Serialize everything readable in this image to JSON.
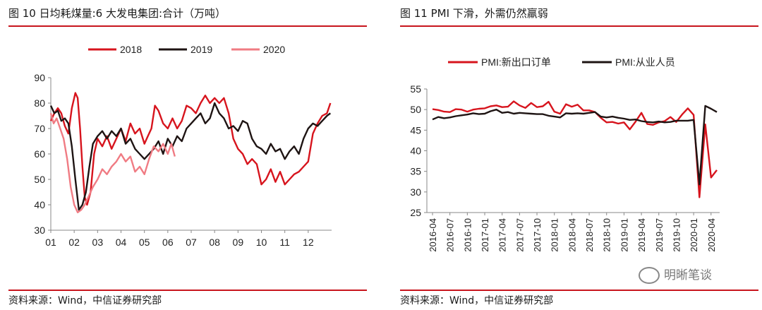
{
  "left": {
    "title": "图 10 日均耗煤量:6 大发电集团:合计（万吨）",
    "source": "资料来源：Wind，中信证券研究部"
  },
  "right": {
    "title": "图 11 PMI 下滑，外需仍然羸弱",
    "source": "资料来源：Wind，中信证券研究部",
    "watermark": "明晰笔谈"
  },
  "chart_data": [
    {
      "type": "line",
      "title": "日均耗煤量:6 大发电集团:合计（万吨）",
      "ylim": [
        30,
        90
      ],
      "yticks": [
        30,
        40,
        50,
        60,
        70,
        80,
        90
      ],
      "xlim": [
        1,
        13
      ],
      "xticks": [
        "01",
        "02",
        "03",
        "04",
        "05",
        "06",
        "07",
        "08",
        "09",
        "10",
        "11",
        "12"
      ],
      "legend_position": "top",
      "series": [
        {
          "name": "2018",
          "color": "#d7141d",
          "x": [
            1.0,
            1.15,
            1.3,
            1.45,
            1.6,
            1.75,
            1.9,
            2.05,
            2.15,
            2.25,
            2.35,
            2.45,
            2.55,
            2.7,
            2.85,
            3.0,
            3.2,
            3.4,
            3.6,
            3.8,
            4.0,
            4.2,
            4.4,
            4.6,
            4.8,
            5.0,
            5.15,
            5.3,
            5.45,
            5.6,
            5.8,
            6.0,
            6.2,
            6.4,
            6.6,
            6.8,
            7.0,
            7.2,
            7.4,
            7.6,
            7.8,
            8.0,
            8.2,
            8.4,
            8.6,
            8.8,
            9.0,
            9.2,
            9.4,
            9.6,
            9.8,
            10.0,
            10.2,
            10.4,
            10.6,
            10.8,
            11.0,
            11.2,
            11.4,
            11.6,
            11.8,
            12.0,
            12.2,
            12.4,
            12.6,
            12.8,
            12.95
          ],
          "values": [
            73,
            76,
            78,
            76,
            71,
            68,
            78,
            84,
            82,
            70,
            55,
            43,
            40,
            45,
            60,
            66,
            63,
            67,
            62,
            66,
            70,
            65,
            72,
            68,
            70,
            64,
            67,
            70,
            79,
            77,
            72,
            70,
            74,
            70,
            73,
            79,
            78,
            76,
            80,
            83,
            80,
            82,
            80,
            82,
            76,
            66,
            62,
            60,
            56,
            58,
            56,
            48,
            50,
            54,
            49,
            53,
            48,
            50,
            52,
            53,
            55,
            57,
            68,
            72,
            75,
            76,
            80
          ]
        },
        {
          "name": "2019",
          "color": "#1e1413",
          "x": [
            1.0,
            1.15,
            1.3,
            1.45,
            1.6,
            1.75,
            1.9,
            2.05,
            2.2,
            2.35,
            2.5,
            2.65,
            2.8,
            3.0,
            3.2,
            3.4,
            3.6,
            3.8,
            4.0,
            4.2,
            4.4,
            4.6,
            4.8,
            5.0,
            5.2,
            5.4,
            5.6,
            5.8,
            6.0,
            6.2,
            6.4,
            6.6,
            6.8,
            7.0,
            7.2,
            7.4,
            7.6,
            7.8,
            8.0,
            8.2,
            8.4,
            8.6,
            8.8,
            9.0,
            9.2,
            9.4,
            9.6,
            9.8,
            10.0,
            10.2,
            10.4,
            10.6,
            10.8,
            11.0,
            11.2,
            11.4,
            11.6,
            11.8,
            12.0,
            12.2,
            12.4,
            12.6,
            12.8,
            12.95
          ],
          "values": [
            79,
            76,
            77,
            73,
            74,
            72,
            63,
            50,
            38,
            40,
            45,
            55,
            64,
            67,
            69,
            66,
            69,
            67,
            70,
            64,
            66,
            62,
            60,
            58,
            60,
            62,
            65,
            60,
            66,
            63,
            67,
            65,
            70,
            72,
            74,
            76,
            72,
            74,
            80,
            76,
            74,
            70,
            71,
            69,
            73,
            72,
            66,
            63,
            62,
            60,
            64,
            61,
            62,
            58,
            61,
            63,
            60,
            66,
            70,
            72,
            71,
            73,
            75,
            76
          ]
        },
        {
          "name": "2020",
          "color": "#f07b83",
          "x": [
            1.0,
            1.12,
            1.25,
            1.4,
            1.55,
            1.7,
            1.85,
            2.0,
            2.15,
            2.3,
            2.45,
            2.6,
            2.8,
            3.0,
            3.2,
            3.4,
            3.6,
            3.8,
            4.0,
            4.2,
            4.4,
            4.6,
            4.8,
            5.0,
            5.2,
            5.4,
            5.6,
            5.8,
            6.0,
            6.15,
            6.3
          ],
          "values": [
            76,
            72,
            74,
            70,
            66,
            58,
            47,
            40,
            37,
            38,
            40,
            43,
            47,
            50,
            54,
            52,
            55,
            57,
            60,
            57,
            59,
            53,
            55,
            52,
            58,
            63,
            61,
            64,
            60,
            64,
            59
          ]
        }
      ]
    },
    {
      "type": "line",
      "title": "PMI 下滑，外需仍然羸弱",
      "ylim": [
        25,
        55
      ],
      "yticks": [
        25,
        30,
        35,
        40,
        45,
        50,
        55
      ],
      "xticks": [
        "2016-04",
        "2016-07",
        "2016-10",
        "2017-01",
        "2017-04",
        "2017-07",
        "2017-10",
        "2018-01",
        "2018-04",
        "2018-07",
        "2018-10",
        "2019-01",
        "2019-04",
        "2019-07",
        "2019-10",
        "2020-01",
        "2020-04"
      ],
      "legend_position": "top",
      "series": [
        {
          "name": "PMI:新出口订单",
          "color": "#d7141d",
          "x": [
            "2016-04",
            "2016-05",
            "2016-06",
            "2016-07",
            "2016-08",
            "2016-09",
            "2016-10",
            "2016-11",
            "2016-12",
            "2017-01",
            "2017-02",
            "2017-03",
            "2017-04",
            "2017-05",
            "2017-06",
            "2017-07",
            "2017-08",
            "2017-09",
            "2017-10",
            "2017-11",
            "2017-12",
            "2018-01",
            "2018-02",
            "2018-03",
            "2018-04",
            "2018-05",
            "2018-06",
            "2018-07",
            "2018-08",
            "2018-09",
            "2018-10",
            "2018-11",
            "2018-12",
            "2019-01",
            "2019-02",
            "2019-03",
            "2019-04",
            "2019-05",
            "2019-06",
            "2019-07",
            "2019-08",
            "2019-09",
            "2019-10",
            "2019-11",
            "2019-12",
            "2020-01",
            "2020-02",
            "2020-03",
            "2020-04",
            "2020-05"
          ],
          "values": [
            50.1,
            49.9,
            49.5,
            49.4,
            50.1,
            50.0,
            49.5,
            50.0,
            50.2,
            50.3,
            50.8,
            51.0,
            50.6,
            50.7,
            52.0,
            51.0,
            50.4,
            51.6,
            50.6,
            50.8,
            51.9,
            49.5,
            49.0,
            51.3,
            50.7,
            51.2,
            49.8,
            49.8,
            49.4,
            48.0,
            46.9,
            47.0,
            46.6,
            46.9,
            45.2,
            47.1,
            49.2,
            46.5,
            46.3,
            46.9,
            47.2,
            48.2,
            47.0,
            48.8,
            50.3,
            48.7,
            28.7,
            46.4,
            33.5,
            35.3
          ]
        },
        {
          "name": "PMI:从业人员",
          "color": "#1e1413",
          "x": [
            "2016-04",
            "2016-05",
            "2016-06",
            "2016-07",
            "2016-08",
            "2016-09",
            "2016-10",
            "2016-11",
            "2016-12",
            "2017-01",
            "2017-02",
            "2017-03",
            "2017-04",
            "2017-05",
            "2017-06",
            "2017-07",
            "2017-08",
            "2017-09",
            "2017-10",
            "2017-11",
            "2017-12",
            "2018-01",
            "2018-02",
            "2018-03",
            "2018-04",
            "2018-05",
            "2018-06",
            "2018-07",
            "2018-08",
            "2018-09",
            "2018-10",
            "2018-11",
            "2018-12",
            "2019-01",
            "2019-02",
            "2019-03",
            "2019-04",
            "2019-05",
            "2019-06",
            "2019-07",
            "2019-08",
            "2019-09",
            "2019-10",
            "2019-11",
            "2019-12",
            "2020-01",
            "2020-02",
            "2020-03",
            "2020-04",
            "2020-05"
          ],
          "values": [
            47.6,
            48.2,
            47.9,
            48.1,
            48.4,
            48.6,
            48.8,
            49.1,
            48.9,
            49.0,
            49.6,
            50.0,
            49.2,
            49.4,
            49.0,
            49.2,
            49.1,
            49.0,
            48.9,
            48.9,
            48.5,
            48.3,
            48.1,
            49.1,
            49.0,
            49.1,
            49.0,
            49.2,
            49.4,
            48.3,
            48.1,
            48.3,
            48.0,
            47.8,
            47.5,
            47.6,
            47.2,
            47.0,
            46.9,
            47.1,
            46.9,
            47.0,
            47.3,
            47.3,
            47.3,
            47.5,
            31.8,
            50.9,
            50.2,
            49.4
          ]
        }
      ]
    }
  ]
}
